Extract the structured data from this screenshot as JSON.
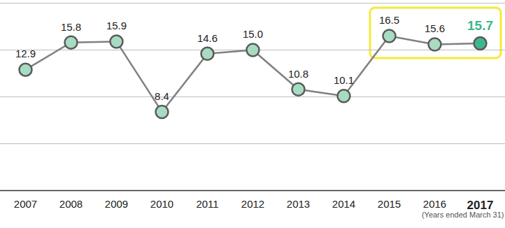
{
  "chart_data": {
    "type": "line",
    "categories": [
      "2007",
      "2008",
      "2009",
      "2010",
      "2011",
      "2012",
      "2013",
      "2014",
      "2015",
      "2016",
      "2017"
    ],
    "values": [
      12.9,
      15.8,
      15.9,
      8.4,
      14.6,
      15.0,
      10.8,
      10.1,
      16.5,
      15.6,
      15.7
    ],
    "value_labels": [
      "12.9",
      "15.8",
      "15.9",
      "8.4",
      "14.6",
      "15.0",
      "10.8",
      "10.1",
      "16.5",
      "15.6",
      "15.7"
    ],
    "data_labels": true,
    "color": "#808080",
    "colors": [
      "#a8dcc2",
      "#a8dcc2",
      "#a8dcc2",
      "#a8dcc2",
      "#a8dcc2",
      "#a8dcc2",
      "#a8dcc2",
      "#a8dcc2",
      "#a8dcc2",
      "#a8dcc2",
      "#3db88a"
    ],
    "marker": "circle",
    "ylim": [
      0,
      20
    ],
    "yticks": [
      0,
      5,
      10,
      15,
      20
    ],
    "grid": true,
    "tick_labels": "x",
    "annotations": [
      "(Years ended March 31)"
    ]
  }
}
